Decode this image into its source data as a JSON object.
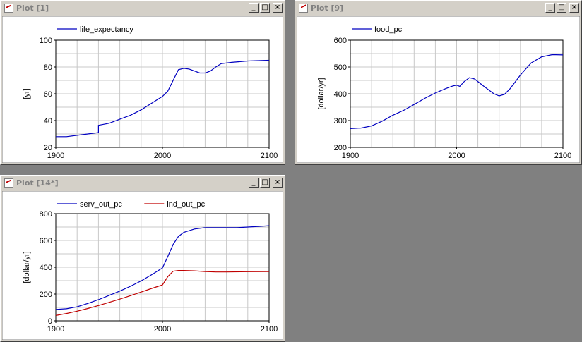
{
  "windows": [
    {
      "id": "w1",
      "title": "Plot [1]",
      "buttons": {
        "minimize": "_",
        "maximize": "□",
        "close": "×"
      },
      "chart_data": {
        "type": "line",
        "ylabel": "[yr]",
        "xlim": [
          1900,
          2100
        ],
        "ylim": [
          20,
          100
        ],
        "xticks": [
          1900,
          2000,
          2100
        ],
        "yticks": [
          20,
          40,
          60,
          80,
          100
        ],
        "grid": true,
        "legend": "top-left",
        "series": [
          {
            "name": "life_expectancy",
            "color": "#0000c0",
            "points": [
              [
                1900,
                28
              ],
              [
                1910,
                28
              ],
              [
                1920,
                29
              ],
              [
                1930,
                30
              ],
              [
                1940,
                31
              ],
              [
                1940,
                36.5
              ],
              [
                1950,
                38
              ],
              [
                1960,
                41
              ],
              [
                1970,
                44
              ],
              [
                1980,
                48
              ],
              [
                1990,
                53
              ],
              [
                1995,
                55.5
              ],
              [
                2000,
                58
              ],
              [
                2005,
                62
              ],
              [
                2010,
                70
              ],
              [
                2015,
                78
              ],
              [
                2020,
                79
              ],
              [
                2025,
                78.5
              ],
              [
                2030,
                77
              ],
              [
                2035,
                75.5
              ],
              [
                2040,
                75.5
              ],
              [
                2045,
                77
              ],
              [
                2050,
                80
              ],
              [
                2055,
                82.5
              ],
              [
                2065,
                83.5
              ],
              [
                2080,
                84.5
              ],
              [
                2100,
                85
              ]
            ]
          }
        ]
      }
    },
    {
      "id": "w2",
      "title": "Plot [9]",
      "buttons": {
        "minimize": "_",
        "maximize": "□",
        "close": "×"
      },
      "chart_data": {
        "type": "line",
        "ylabel": "[dollar/yr]",
        "xlim": [
          1900,
          2100
        ],
        "ylim": [
          200,
          600
        ],
        "xticks": [
          1900,
          2000,
          2100
        ],
        "yticks": [
          200,
          300,
          400,
          500,
          600
        ],
        "grid": true,
        "legend": "top-left",
        "series": [
          {
            "name": "food_pc",
            "color": "#0000c0",
            "points": [
              [
                1900,
                270
              ],
              [
                1910,
                272
              ],
              [
                1920,
                280
              ],
              [
                1930,
                298
              ],
              [
                1940,
                320
              ],
              [
                1950,
                338
              ],
              [
                1960,
                360
              ],
              [
                1970,
                383
              ],
              [
                1980,
                403
              ],
              [
                1990,
                420
              ],
              [
                1997,
                430
              ],
              [
                2000,
                432
              ],
              [
                2003,
                428
              ],
              [
                2007,
                445
              ],
              [
                2012,
                460
              ],
              [
                2017,
                455
              ],
              [
                2025,
                430
              ],
              [
                2035,
                400
              ],
              [
                2040,
                392
              ],
              [
                2045,
                398
              ],
              [
                2050,
                418
              ],
              [
                2060,
                470
              ],
              [
                2070,
                515
              ],
              [
                2080,
                538
              ],
              [
                2090,
                546
              ],
              [
                2100,
                545
              ]
            ]
          }
        ]
      }
    },
    {
      "id": "w3",
      "title": "Plot [14*]",
      "buttons": {
        "minimize": "_",
        "maximize": "□",
        "close": "×"
      },
      "chart_data": {
        "type": "line",
        "ylabel": "[dollar/yr]",
        "xlim": [
          1900,
          2100
        ],
        "ylim": [
          0,
          800
        ],
        "xticks": [
          1900,
          2000,
          2100
        ],
        "yticks": [
          0,
          200,
          400,
          600,
          800
        ],
        "grid": true,
        "legend": "top-left",
        "series": [
          {
            "name": "serv_out_pc",
            "color": "#0000c0",
            "points": [
              [
                1900,
                85
              ],
              [
                1910,
                90
              ],
              [
                1920,
                105
              ],
              [
                1930,
                130
              ],
              [
                1940,
                158
              ],
              [
                1950,
                190
              ],
              [
                1960,
                222
              ],
              [
                1970,
                258
              ],
              [
                1980,
                298
              ],
              [
                1990,
                345
              ],
              [
                2000,
                395
              ],
              [
                2005,
                480
              ],
              [
                2010,
                570
              ],
              [
                2015,
                630
              ],
              [
                2020,
                660
              ],
              [
                2030,
                685
              ],
              [
                2040,
                695
              ],
              [
                2050,
                695
              ],
              [
                2060,
                695
              ],
              [
                2070,
                695
              ],
              [
                2080,
                700
              ],
              [
                2090,
                705
              ],
              [
                2100,
                710
              ]
            ]
          },
          {
            "name": "ind_out_pc",
            "color": "#c00000",
            "points": [
              [
                1900,
                40
              ],
              [
                1910,
                55
              ],
              [
                1920,
                72
              ],
              [
                1930,
                92
              ],
              [
                1940,
                114
              ],
              [
                1950,
                138
              ],
              [
                1960,
                162
              ],
              [
                1970,
                188
              ],
              [
                1980,
                215
              ],
              [
                1990,
                242
              ],
              [
                2000,
                268
              ],
              [
                2005,
                330
              ],
              [
                2010,
                370
              ],
              [
                2015,
                376
              ],
              [
                2020,
                376
              ],
              [
                2030,
                373
              ],
              [
                2040,
                368
              ],
              [
                2050,
                365
              ],
              [
                2060,
                365
              ],
              [
                2080,
                367
              ],
              [
                2100,
                368
              ]
            ]
          }
        ]
      }
    }
  ]
}
